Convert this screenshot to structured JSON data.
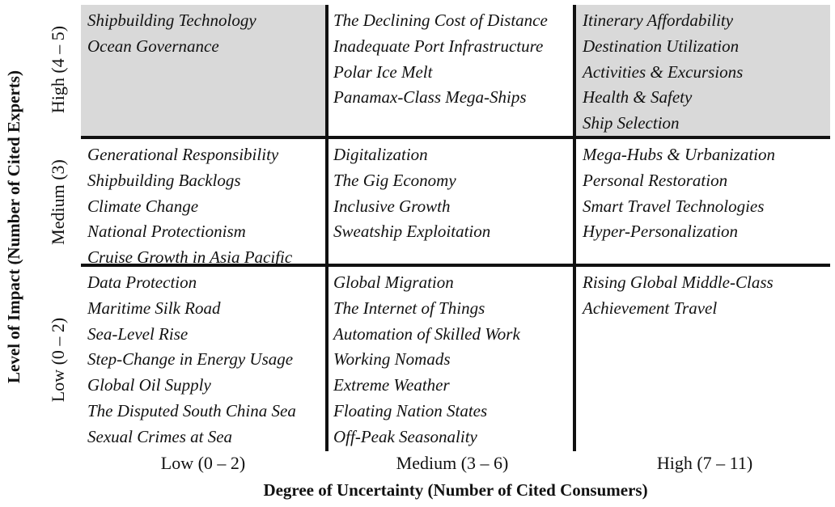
{
  "y_axis_title": "Level of Impact (Number of Cited Experts)",
  "x_axis_title": "Degree of Uncertainty (Number of Cited Consumers)",
  "row_labels": [
    "High (4 – 5)",
    "Medium (3)",
    "Low (0 – 2)"
  ],
  "column_labels": [
    "Low (0 – 2)",
    "Medium (3 – 6)",
    "High (7 – 11)"
  ],
  "shaded_color": "#d9d9d9",
  "cells": {
    "high_impact": {
      "low_uncertainty": [
        "Shipbuilding Technology",
        "Ocean Governance"
      ],
      "medium_uncertainty": [
        "The Declining Cost of Distance",
        "Inadequate Port Infrastructure",
        "Polar Ice Melt",
        "Panamax-Class Mega-Ships"
      ],
      "high_uncertainty": [
        "Itinerary Affordability",
        "Destination Utilization",
        "Activities & Excursions",
        "Health & Safety",
        "Ship Selection"
      ]
    },
    "medium_impact": {
      "low_uncertainty": [
        "Generational Responsibility",
        "Shipbuilding Backlogs",
        "Climate Change",
        "National Protectionism",
        "Cruise Growth in Asia Pacific"
      ],
      "medium_uncertainty": [
        "Digitalization",
        "The Gig Economy",
        "Inclusive Growth",
        "Sweatship Exploitation"
      ],
      "high_uncertainty": [
        "Mega-Hubs & Urbanization",
        "Personal Restoration",
        "Smart Travel Technologies",
        "Hyper-Personalization"
      ]
    },
    "low_impact": {
      "low_uncertainty": [
        "Data Protection",
        "Maritime Silk Road",
        "Sea-Level Rise",
        "Step-Change in Energy Usage",
        "Global Oil Supply",
        "The Disputed South China Sea",
        "Sexual Crimes at Sea"
      ],
      "medium_uncertainty": [
        "Global Migration",
        "The Internet of Things",
        "Automation of Skilled Work",
        "Working Nomads",
        "Extreme Weather",
        "Floating Nation States",
        "Off-Peak Seasonality"
      ],
      "high_uncertainty": [
        "Rising Global Middle-Class",
        "Achievement Travel"
      ]
    }
  }
}
